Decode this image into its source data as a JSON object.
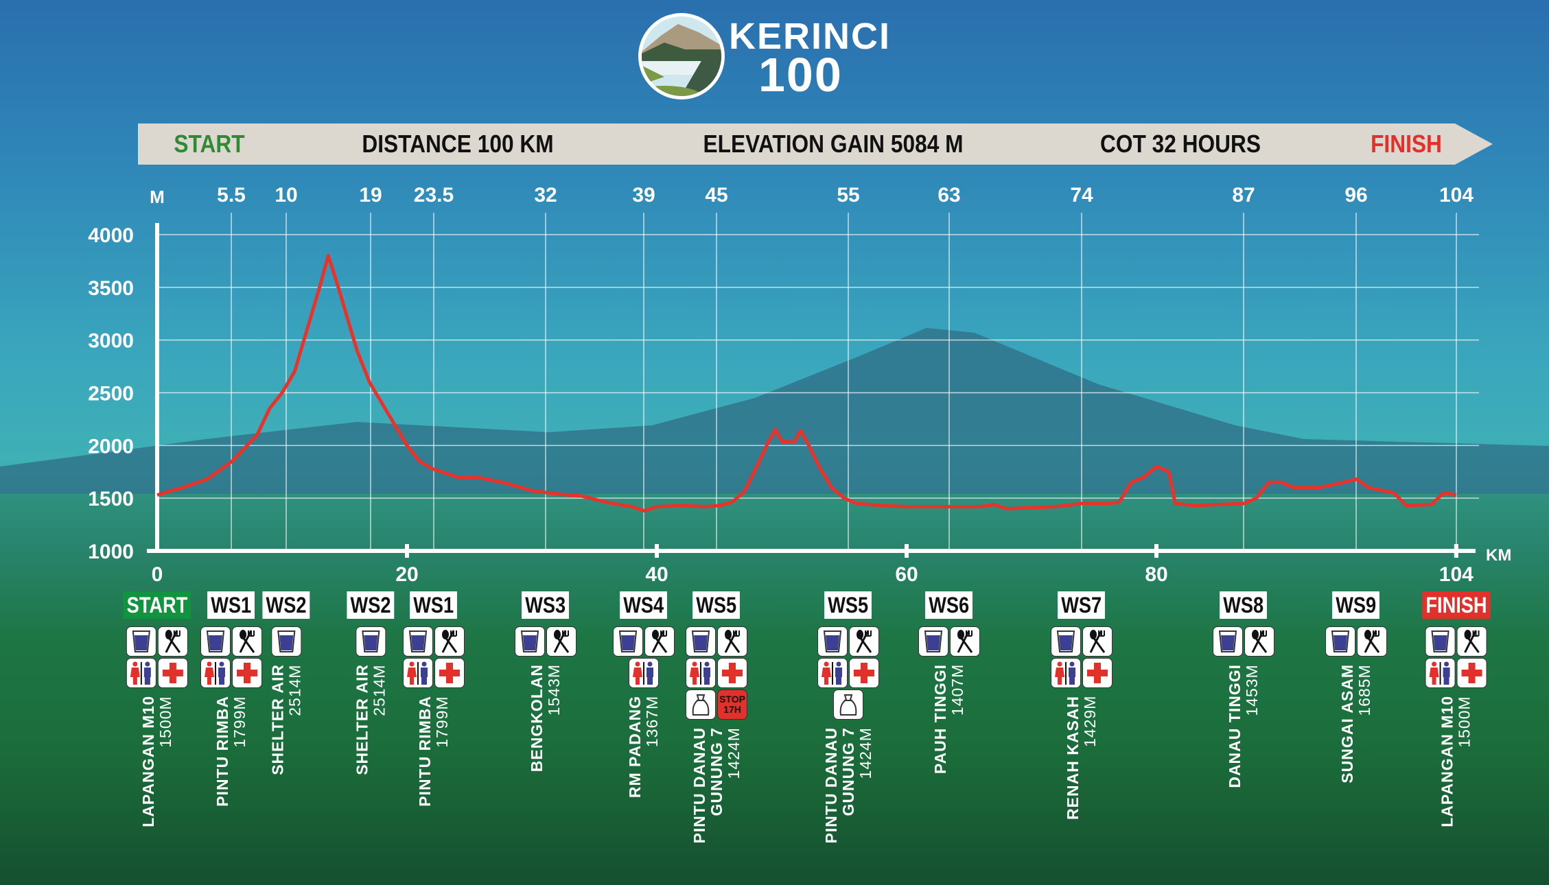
{
  "logo": {
    "line1": "KERINCI",
    "line2": "100"
  },
  "banner": {
    "start": "START",
    "distance": "DISTANCE 100 KM",
    "elevation": "ELEVATION GAIN 5084 M",
    "cot": "COT 32 HOURS",
    "finish": "FINISH"
  },
  "colors": {
    "start": "#12933f",
    "finish": "#e2302b",
    "profile": "#e8322a",
    "water": "#3d3f92"
  },
  "chart_data": {
    "type": "line",
    "title": "",
    "ylabel": "M",
    "xlabel": "KM",
    "ylim": [
      1000,
      4000
    ],
    "xlim": [
      0,
      104
    ],
    "yticks": [
      1000,
      1500,
      2000,
      2500,
      3000,
      3500,
      4000
    ],
    "xticks": [
      "0",
      "20",
      "40",
      "60",
      "80",
      "104"
    ],
    "checkpoint_km_labels": [
      "5.5",
      "10",
      "19",
      "23.5",
      "32",
      "39",
      "45",
      "55",
      "63",
      "74",
      "87",
      "96",
      "104"
    ],
    "grid": true,
    "series": [
      {
        "name": "Elevation",
        "x": [
          0,
          2,
          4,
          6,
          8,
          9,
          10,
          11,
          12,
          13,
          13.7,
          14.5,
          15,
          16,
          17,
          18,
          19,
          20,
          21,
          22,
          24,
          26,
          28,
          30,
          32,
          34,
          36,
          38,
          39,
          40,
          42,
          44,
          45,
          46,
          47,
          48,
          49,
          49.5,
          50,
          51,
          51.5,
          52,
          53,
          54,
          55,
          56,
          58,
          60,
          62,
          64,
          66,
          67,
          68,
          70,
          72,
          74,
          76,
          77,
          78,
          79,
          80,
          81,
          81.5,
          83,
          85,
          87,
          88,
          89,
          90,
          91,
          93,
          95,
          96,
          97,
          99,
          100,
          102,
          103,
          104
        ],
        "y": [
          1530,
          1600,
          1680,
          1850,
          2100,
          2350,
          2500,
          2700,
          3100,
          3500,
          3800,
          3500,
          3300,
          2900,
          2600,
          2400,
          2200,
          2000,
          1850,
          1780,
          1700,
          1690,
          1640,
          1570,
          1540,
          1520,
          1460,
          1420,
          1380,
          1420,
          1430,
          1420,
          1430,
          1460,
          1560,
          1800,
          2050,
          2150,
          2040,
          2030,
          2140,
          2040,
          1800,
          1600,
          1500,
          1450,
          1430,
          1420,
          1420,
          1420,
          1420,
          1440,
          1400,
          1410,
          1420,
          1450,
          1450,
          1460,
          1650,
          1700,
          1800,
          1750,
          1450,
          1430,
          1440,
          1450,
          1500,
          1650,
          1650,
          1600,
          1600,
          1650,
          1680,
          1600,
          1550,
          1430,
          1440,
          1550,
          1530
        ]
      }
    ]
  },
  "stations": [
    {
      "label": "START",
      "type": "start",
      "name": "LAPANGAN M10",
      "elev": "1500M",
      "icons": [
        [
          "water",
          "food"
        ],
        [
          "toilet",
          "medic"
        ]
      ]
    },
    {
      "label": "WS1",
      "type": "ws",
      "name": "PINTU RIMBA",
      "elev": "1799M",
      "icons": [
        [
          "water",
          "food"
        ],
        [
          "toilet",
          "medic"
        ]
      ]
    },
    {
      "label": "WS2",
      "type": "ws",
      "name": "SHELTER AIR",
      "elev": "2514M",
      "icons": [
        [
          "water"
        ]
      ]
    },
    {
      "label": "WS2",
      "type": "ws",
      "name": "SHELTER AIR",
      "elev": "2514M",
      "icons": [
        [
          "water"
        ]
      ]
    },
    {
      "label": "WS1",
      "type": "ws",
      "name": "PINTU RIMBA",
      "elev": "1799M",
      "icons": [
        [
          "water",
          "food"
        ],
        [
          "toilet",
          "medic"
        ]
      ]
    },
    {
      "label": "WS3",
      "type": "ws",
      "name": "BENGKOLAN",
      "elev": "1543M",
      "icons": [
        [
          "water",
          "food"
        ]
      ]
    },
    {
      "label": "WS4",
      "type": "ws",
      "name": "RM PADANG",
      "elev": "1367M",
      "icons": [
        [
          "water",
          "food"
        ],
        [
          "toilet"
        ]
      ]
    },
    {
      "label": "WS5",
      "type": "ws",
      "name": "PINTU DANAU\nGUNUNG 7",
      "elev": "1424M",
      "icons": [
        [
          "water",
          "food"
        ],
        [
          "toilet",
          "medic"
        ],
        [
          "drop-bag",
          "stop"
        ]
      ],
      "stop_text": "STOP 17H"
    },
    {
      "label": "WS5",
      "type": "ws",
      "name": "PINTU DANAU\nGUNUNG 7",
      "elev": "1424M",
      "icons": [
        [
          "water",
          "food"
        ],
        [
          "toilet",
          "medic"
        ],
        [
          "drop-bag"
        ]
      ]
    },
    {
      "label": "WS6",
      "type": "ws",
      "name": "PAUH TINGGI",
      "elev": "1407M",
      "icons": [
        [
          "water",
          "food"
        ]
      ]
    },
    {
      "label": "WS7",
      "type": "ws",
      "name": "RENAH KASAH",
      "elev": "1429M",
      "icons": [
        [
          "water",
          "food"
        ],
        [
          "toilet",
          "medic"
        ]
      ]
    },
    {
      "label": "WS8",
      "type": "ws",
      "name": "DANAU TINGGI",
      "elev": "1453M",
      "icons": [
        [
          "water",
          "food"
        ]
      ]
    },
    {
      "label": "WS9",
      "type": "ws",
      "name": "SUNGAI ASAM",
      "elev": "1685M",
      "icons": [
        [
          "water",
          "food"
        ]
      ]
    },
    {
      "label": "FINISH",
      "type": "finish",
      "name": "LAPANGAN M10",
      "elev": "1500M",
      "icons": [
        [
          "water",
          "food"
        ],
        [
          "toilet",
          "medic"
        ]
      ]
    }
  ]
}
